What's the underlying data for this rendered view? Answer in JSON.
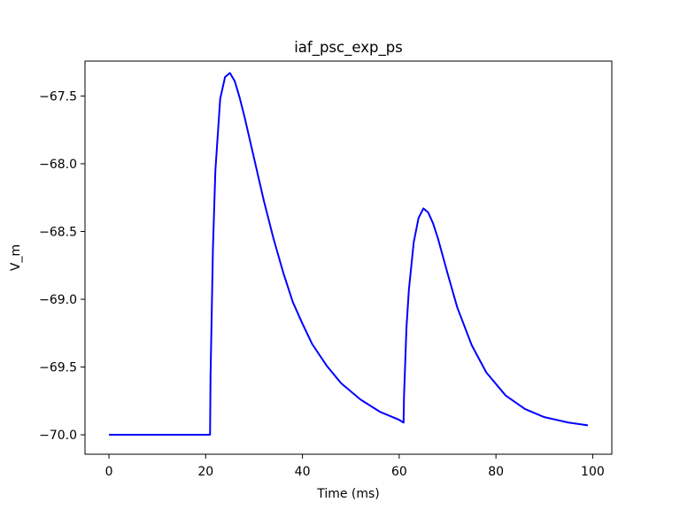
{
  "chart_data": {
    "type": "line",
    "title": "iaf_psc_exp_ps",
    "xlabel": "Time (ms)",
    "ylabel": "V_m",
    "xlim": [
      -4.95,
      103.95
    ],
    "ylim": [
      -70.1434,
      -67.2425
    ],
    "xticks": [
      0,
      20,
      40,
      60,
      80,
      100
    ],
    "xtick_labels": [
      "0",
      "20",
      "40",
      "60",
      "80",
      "100"
    ],
    "yticks": [
      -70.0,
      -69.5,
      -69.0,
      -68.5,
      -68.0,
      -67.5
    ],
    "ytick_labels": [
      "−70.0",
      "−69.5",
      "−69.0",
      "−68.5",
      "−68.0",
      "−67.5"
    ],
    "grid": false,
    "series": [
      {
        "color": "#0000ff",
        "x": [
          0,
          5,
          10,
          15,
          20,
          20.9,
          21.0,
          21.5,
          22,
          23,
          24,
          25,
          26,
          27,
          28,
          30,
          32,
          34,
          36,
          38,
          40,
          42,
          45,
          48,
          52,
          56,
          60,
          60.9,
          61.0,
          61.5,
          62,
          63,
          64,
          65,
          66,
          67,
          68,
          70,
          72,
          75,
          78,
          82,
          86,
          90,
          95,
          99
        ],
        "y": [
          -70.0,
          -70.0,
          -70.0,
          -70.0,
          -70.0,
          -70.0,
          -69.57,
          -68.62,
          -68.05,
          -67.52,
          -67.36,
          -67.33,
          -67.39,
          -67.51,
          -67.65,
          -67.96,
          -68.27,
          -68.55,
          -68.8,
          -69.02,
          -69.18,
          -69.33,
          -69.49,
          -69.62,
          -69.74,
          -69.83,
          -69.89,
          -69.91,
          -69.71,
          -69.21,
          -68.93,
          -68.58,
          -68.4,
          -68.33,
          -68.36,
          -68.44,
          -68.55,
          -68.81,
          -69.06,
          -69.34,
          -69.54,
          -69.71,
          -69.81,
          -69.87,
          -69.91,
          -69.93
        ]
      }
    ]
  }
}
